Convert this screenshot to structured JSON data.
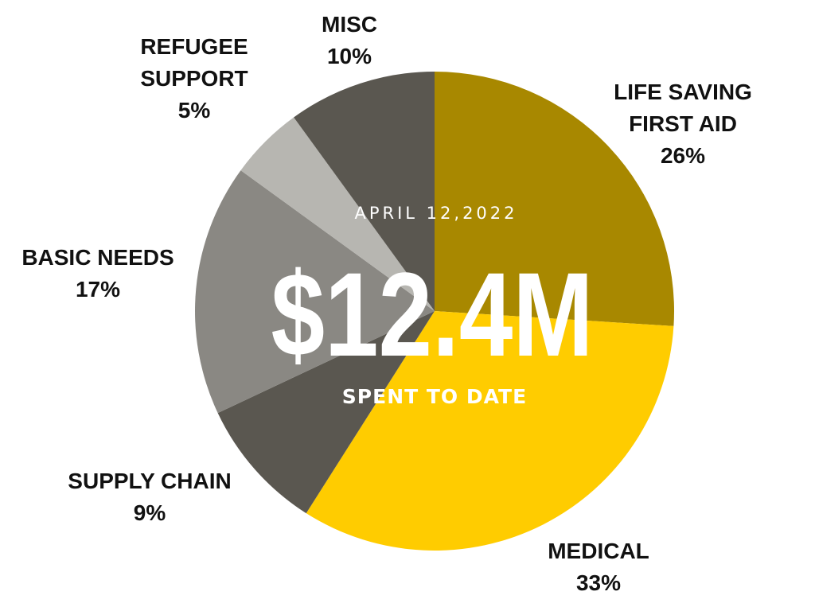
{
  "chart_data": {
    "type": "pie",
    "slices": [
      {
        "label_lines": [
          "LIFE SAVING",
          "FIRST AID"
        ],
        "percent_label": "26%",
        "value": 26,
        "color": "#A88800"
      },
      {
        "label_lines": [
          "MEDICAL"
        ],
        "percent_label": "33%",
        "value": 33,
        "color": "#FFCC00"
      },
      {
        "label_lines": [
          "SUPPLY CHAIN"
        ],
        "percent_label": "9%",
        "value": 9,
        "color": "#5A5750"
      },
      {
        "label_lines": [
          "BASIC NEEDS"
        ],
        "percent_label": "17%",
        "value": 17,
        "color": "#8A8883"
      },
      {
        "label_lines": [
          "REFUGEE",
          "SUPPORT"
        ],
        "percent_label": "5%",
        "value": 5,
        "color": "#B7B6B1"
      },
      {
        "label_lines": [
          "MISC"
        ],
        "percent_label": "10%",
        "value": 10,
        "color": "#5A5750"
      }
    ],
    "start_angle": "top",
    "direction": "clockwise"
  },
  "center": {
    "date": "APRIL 12,2022",
    "amount": "$12.4M",
    "caption": "SPENT TO DATE"
  }
}
